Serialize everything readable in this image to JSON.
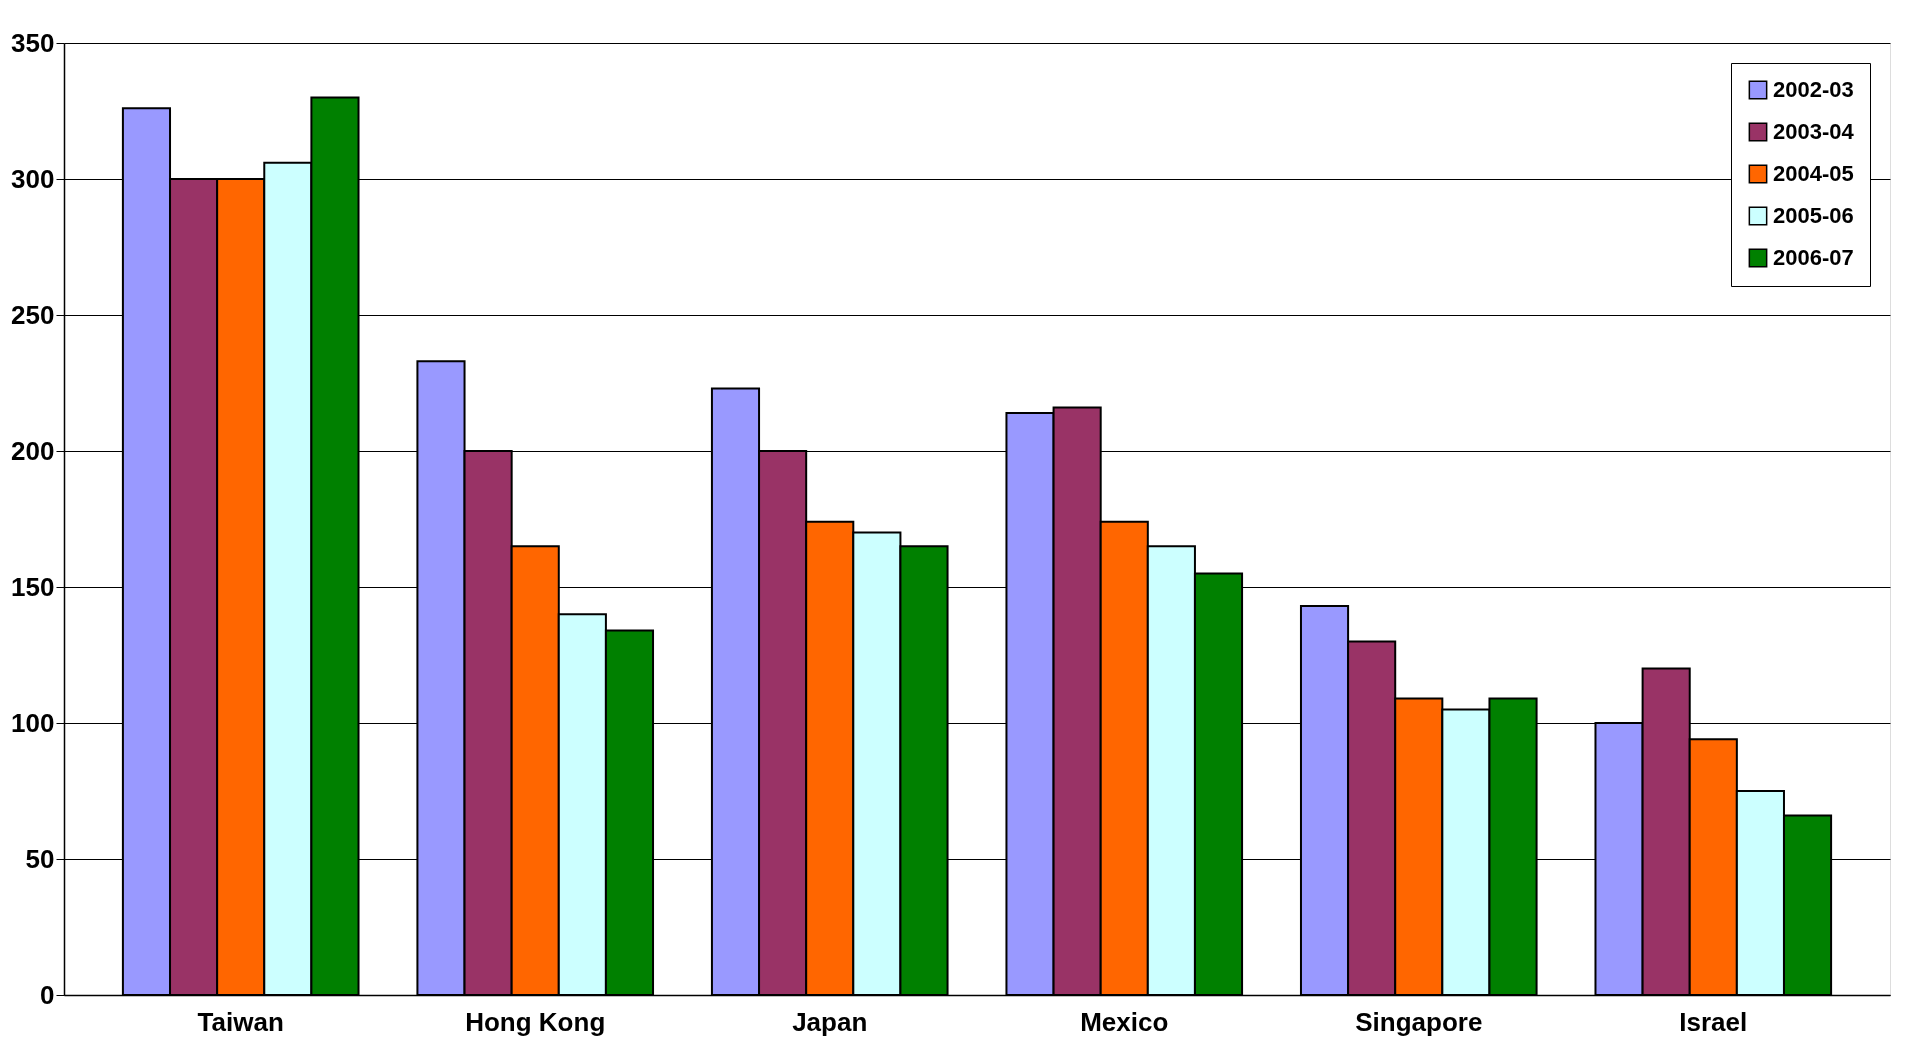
{
  "chart_data": {
    "type": "bar",
    "categories": [
      "Taiwan",
      "Hong Kong",
      "Japan",
      "Mexico",
      "Singapore",
      "Israel"
    ],
    "series": [
      {
        "name": "2002-03",
        "color": "#9999ff",
        "values": [
          326,
          233,
          223,
          214,
          143,
          100
        ]
      },
      {
        "name": "2003-04",
        "color": "#993366",
        "values": [
          300,
          200,
          200,
          216,
          130,
          120
        ]
      },
      {
        "name": "2004-05",
        "color": "#ff6600",
        "values": [
          300,
          165,
          174,
          174,
          109,
          94
        ]
      },
      {
        "name": "2005-06",
        "color": "#ccffff",
        "values": [
          306,
          140,
          170,
          165,
          105,
          75
        ]
      },
      {
        "name": "2006-07",
        "color": "#008000",
        "values": [
          330,
          134,
          165,
          155,
          109,
          66
        ]
      }
    ],
    "ylim": [
      0,
      350
    ],
    "yticks": [
      0,
      50,
      100,
      150,
      200,
      250,
      300,
      350
    ],
    "grid": "y",
    "legend": "top right"
  }
}
